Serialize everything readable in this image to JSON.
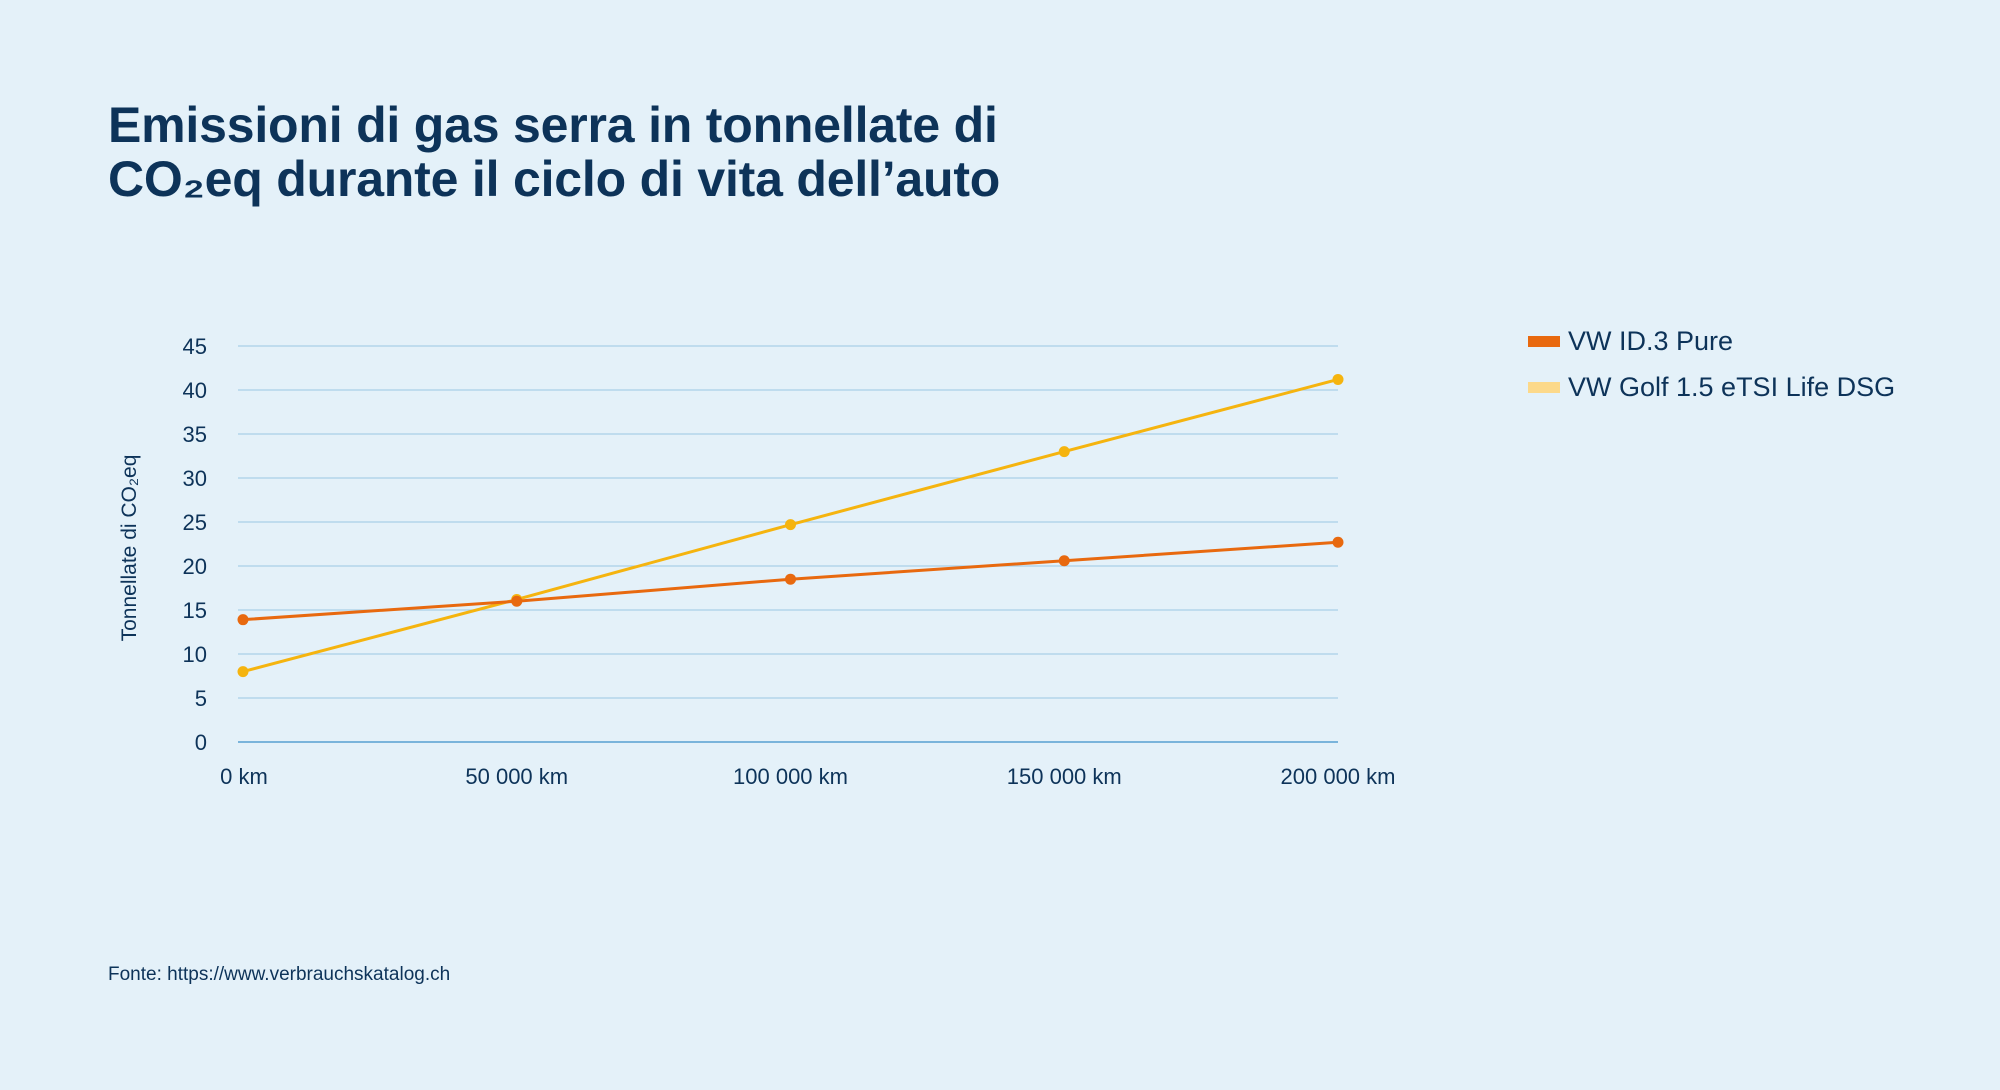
{
  "title_line1": "Emissioni di gas serra in tonnellate di",
  "title_line2": "CO₂eq durante il ciclo di vita dell’auto",
  "source": "Fonte: https://www.verbrauchskatalog.ch",
  "chart_data": {
    "type": "line",
    "title": "Emissioni di gas serra in tonnellate di CO₂eq durante il ciclo di vita dell’auto",
    "xlabel": "",
    "ylabel": "Tonnellate di CO₂eq",
    "x": [
      0,
      50000,
      100000,
      150000,
      200000
    ],
    "x_tick_labels": [
      "0 km",
      "50 000 km",
      "100 000 km",
      "150 000 km",
      "200 000 km"
    ],
    "y_ticks": [
      0,
      5,
      10,
      15,
      20,
      25,
      30,
      35,
      40,
      45
    ],
    "ylim": [
      0,
      45
    ],
    "grid": true,
    "legend_position": "top-right",
    "series": [
      {
        "name": "VW ID.3 Pure",
        "values": [
          13.9,
          16.0,
          18.5,
          20.6,
          22.7
        ],
        "color": "#e8690f"
      },
      {
        "name": "VW Golf 1.5 eTSI Life DSG",
        "values": [
          8.0,
          16.2,
          24.7,
          33.0,
          41.2
        ],
        "color": "#f5b40f",
        "legend_color": "#fcd98a"
      }
    ]
  }
}
